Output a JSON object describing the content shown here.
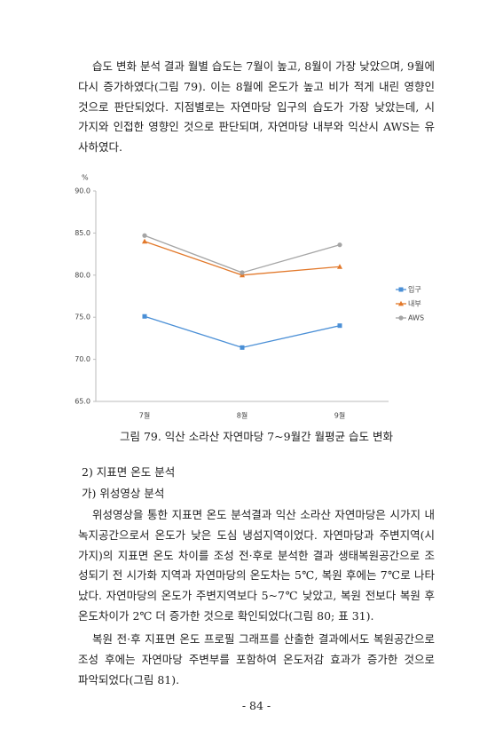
{
  "paragraph_1": [
    "습도 변화 분석 결과 월별 습도는 7월이 높고, 8월이 가장 낮았으며, 9월에",
    "다시 증가하였다(그림 79). 이는 8월에 온도가 높고 비가 적게 내린 영향인",
    "것으로 판단되었다. 지점별로는 자연마당 입구의 습도가 가장 낮았는데, 시",
    "가지와 인접한 영향인 것으로 판단되며, 자연마당 내부와 익산시 AWS는 유",
    "사하였다."
  ],
  "chart_data": {
    "type": "line",
    "y_label": "%",
    "categories": [
      "7월",
      "8월",
      "9월"
    ],
    "series": [
      {
        "name": "입구",
        "color": "#4a8fd6",
        "marker": "square",
        "values": [
          75.1,
          71.4,
          74.0
        ]
      },
      {
        "name": "내부",
        "color": "#e2782a",
        "marker": "triangle",
        "values": [
          84.0,
          80.0,
          81.0
        ]
      },
      {
        "name": "AWS",
        "color": "#a5a5a5",
        "marker": "circle",
        "values": [
          84.7,
          80.3,
          83.6
        ]
      }
    ],
    "ylim": [
      65,
      90
    ],
    "yticks": [
      {
        "value": 65,
        "label": "65.0"
      },
      {
        "value": 70,
        "label": "70.0"
      },
      {
        "value": 75,
        "label": "75.0"
      },
      {
        "value": 80,
        "label": "80.0"
      },
      {
        "value": 85,
        "label": "85.0"
      },
      {
        "value": 90,
        "label": "90.0"
      }
    ],
    "grid": false,
    "legend": "right"
  },
  "caption": "그림 79. 익산 소라산 자연마당 7~9월간 월평균 습도 변화",
  "heading_1": "2) 지표면 온도 분석",
  "heading_2": "가) 위성영상 분석",
  "paragraph_2": [
    "위성영상을 통한 지표면 온도 분석결과 익산 소라산 자연마당은 시가지 내",
    "녹지공간으로서 온도가 낮은 도심 냉섬지역이었다. 자연마당과 주변지역(시",
    "가지)의 지표면 온도 차이를 조성 전·후로 분석한 결과 생태복원공간으로 조",
    "성되기 전 시가화 지역과 자연마당의 온도차는 5℃, 복원 후에는 7℃로 나타",
    "났다. 자연마당의 온도가 주변지역보다 5~7℃ 낮았고, 복원 전보다 복원 후",
    "온도차이가 2℃ 더 증가한 것으로 확인되었다(그림 80; 표 31)."
  ],
  "paragraph_3": [
    "복원 전·후 지표면 온도 프로필 그래프를 산출한 결과에서도 복원공간으로",
    "조성 후에는 자연마당 주변부를 포함하여 온도저감 효과가 증가한 것으로",
    "파악되었다(그림 81)."
  ],
  "page_number": "- 84 -"
}
